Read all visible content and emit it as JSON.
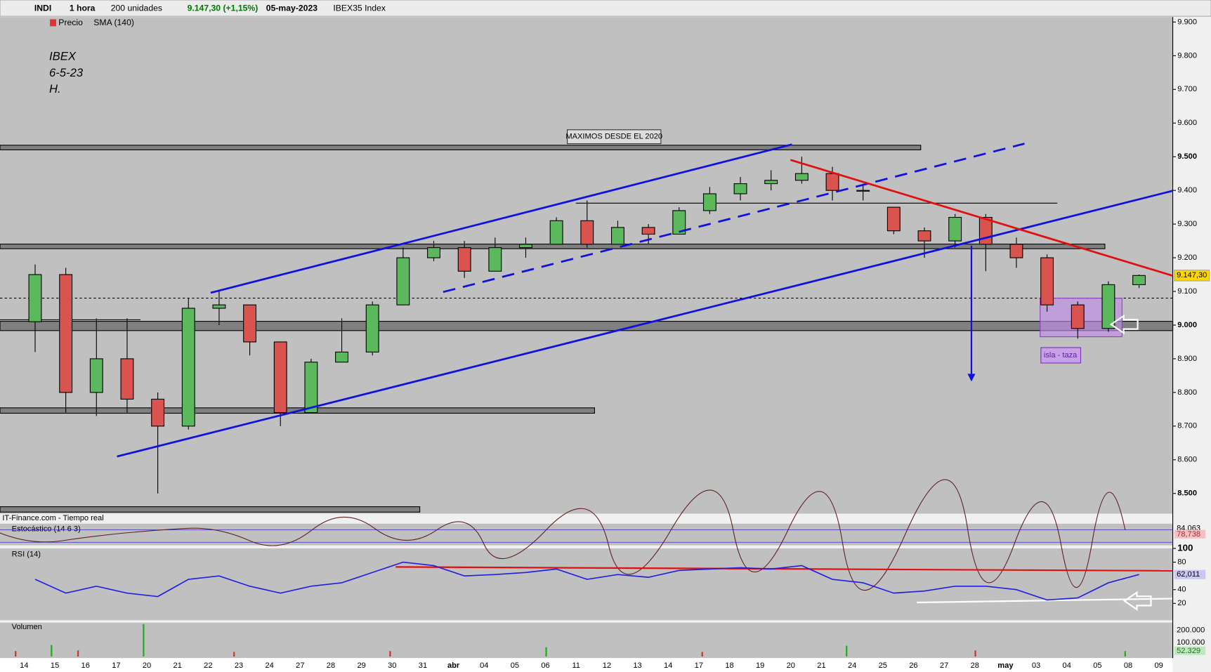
{
  "toolbar": {
    "symbol": "INDI",
    "interval": "1 hora",
    "units": "200 unidades",
    "quote": "9.147,30 (+1,15%)",
    "date": "05-may-2023",
    "index": "IBEX35 Index"
  },
  "legend": {
    "price": "Precio",
    "sma": "SMA (140)"
  },
  "panels": {
    "source": "IT-Finance.com - Tiempo real",
    "stochastic": "Estocástico (14 6 3)",
    "stochastic_labels": [
      "84,063",
      "78,738"
    ],
    "volume": "Volumen",
    "volume_ticks": [
      "200.000",
      "100.000"
    ],
    "volume_last": "52.329"
  },
  "chart_data": {
    "type": "candlestick",
    "annotation": [
      "IBEX",
      "6-5-23",
      "H."
    ],
    "label_top": "MAXIMOS DESDE EL 2020",
    "label_box": "isla - taza",
    "last_price": 9147.3,
    "last_price_label": "9.147,30",
    "categories": [
      "14",
      "15",
      "16",
      "17",
      "20",
      "21",
      "22",
      "23",
      "24",
      "27",
      "28",
      "29",
      "30",
      "31",
      "abr",
      "04",
      "05",
      "06",
      "11",
      "12",
      "13",
      "14",
      "17",
      "18",
      "19",
      "20",
      "21",
      "24",
      "25",
      "26",
      "27",
      "28",
      "may",
      "03",
      "04",
      "05",
      "08",
      "09"
    ],
    "open": [
      9010,
      9150,
      8800,
      8900,
      8780,
      8700,
      9050,
      9060,
      8950,
      8740,
      8890,
      8920,
      9060,
      9200,
      9230,
      9160,
      9230,
      9240,
      9310,
      9240,
      9290,
      9270,
      9340,
      9390,
      9420,
      9430,
      9450,
      9400,
      9350,
      9280,
      9250,
      9320,
      9240,
      9200,
      9060,
      8990,
      9120,
      null
    ],
    "high": [
      9180,
      9170,
      9020,
      9020,
      8800,
      9080,
      9100,
      9060,
      8950,
      8900,
      9020,
      9070,
      9230,
      9250,
      9250,
      9260,
      9260,
      9320,
      9370,
      9310,
      9300,
      9350,
      9410,
      9440,
      9460,
      9500,
      9470,
      9420,
      9350,
      9290,
      9330,
      9330,
      9260,
      9210,
      9070,
      9130,
      9150,
      null
    ],
    "low": [
      8920,
      8740,
      8730,
      8740,
      8500,
      8690,
      9000,
      8910,
      8700,
      8740,
      8890,
      8910,
      9060,
      9190,
      9140,
      9160,
      9200,
      9240,
      9230,
      9240,
      9240,
      9270,
      9330,
      9370,
      9400,
      9420,
      9370,
      9370,
      9270,
      9200,
      9230,
      9160,
      9170,
      9040,
      8960,
      8980,
      9110,
      null
    ],
    "close": [
      9150,
      8800,
      8900,
      8780,
      8700,
      9050,
      9060,
      8950,
      8740,
      8890,
      8920,
      9060,
      9200,
      9230,
      9160,
      9230,
      9240,
      9310,
      9240,
      9290,
      9270,
      9340,
      9390,
      9420,
      9430,
      9450,
      9400,
      9400,
      9280,
      9250,
      9320,
      9240,
      9200,
      9060,
      8990,
      9120,
      9147.3,
      null
    ],
    "up_color": "#5cb85c",
    "down_color": "#d9534f",
    "ylim": [
      8440,
      9915
    ],
    "yticks": [
      {
        "value": 8500,
        "label": "8.500"
      },
      {
        "value": 8600,
        "label": "8.600"
      },
      {
        "value": 8700,
        "label": "8.700"
      },
      {
        "value": 8800,
        "label": "8.800"
      },
      {
        "value": 8900,
        "label": "8.900"
      },
      {
        "value": 9000,
        "label": "9.000"
      },
      {
        "value": 9100,
        "label": "9.100"
      },
      {
        "value": 9200,
        "label": "9.200"
      },
      {
        "value": 9300,
        "label": "9.300"
      },
      {
        "value": 9400,
        "label": "9.400"
      },
      {
        "value": 9500,
        "label": "9.500"
      },
      {
        "value": 9600,
        "label": "9.600"
      },
      {
        "value": 9700,
        "label": "9.700"
      },
      {
        "value": 9800,
        "label": "9.800"
      },
      {
        "value": 9900,
        "label": "9.900"
      }
    ],
    "rsi": {
      "name": "RSI (14)",
      "color": "#2020e0",
      "last_label": "62,011",
      "values": [
        55,
        35,
        45,
        35,
        30,
        55,
        60,
        45,
        35,
        45,
        50,
        65,
        80,
        75,
        60,
        62,
        65,
        70,
        55,
        62,
        58,
        68,
        70,
        72,
        70,
        75,
        55,
        50,
        35,
        38,
        45,
        45,
        40,
        25,
        28,
        50,
        62,
        null
      ],
      "ylim": [
        0,
        100
      ],
      "yticks": [
        100,
        80,
        40,
        20
      ]
    }
  }
}
